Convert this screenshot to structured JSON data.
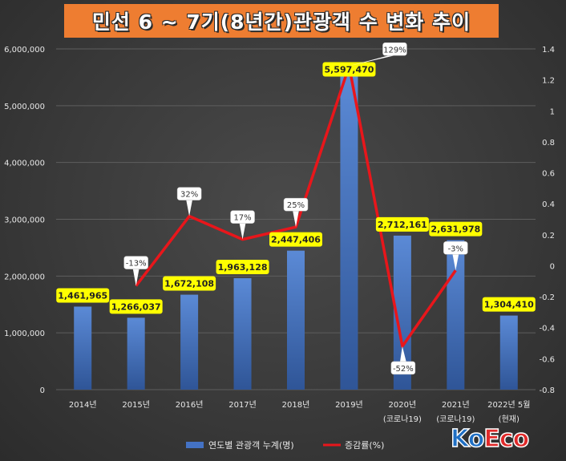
{
  "title": "민선 6 ~ 7기(8년간)관광객 수 변화 추이",
  "logo": {
    "part1": "Ko",
    "part2": "Eco"
  },
  "colors": {
    "bar": "#4472c4",
    "line": "#e8161b",
    "title_bg": "#ee7d31",
    "label_bg": "#ffff00"
  },
  "chart_data": {
    "type": "bar",
    "categories": [
      [
        "2014년"
      ],
      [
        "2015년"
      ],
      [
        "2016년"
      ],
      [
        "2017년"
      ],
      [
        "2018년"
      ],
      [
        "2019년"
      ],
      [
        "2020년",
        "(코로나19)"
      ],
      [
        "2021년",
        "(코로나19)"
      ],
      [
        "2022년 5월",
        "(현재)"
      ]
    ],
    "series": [
      {
        "name": "연도별 관광객 누계(명)",
        "type": "bar",
        "axis": "left",
        "values": [
          1461965,
          1266037,
          1672108,
          1963128,
          2447406,
          5597470,
          2712161,
          2631978,
          1304410
        ],
        "labels": [
          "1,461,965",
          "1,266,037",
          "1,672,108",
          "1,963,128",
          "2,447,406",
          "5,597,470",
          "2,712,161",
          "2,631,978",
          "1,304,410"
        ]
      },
      {
        "name": "증감률(%)",
        "type": "line",
        "axis": "right",
        "values": [
          null,
          -0.13,
          0.32,
          0.17,
          0.25,
          1.29,
          -0.52,
          -0.03,
          null
        ],
        "labels": [
          null,
          "-13%",
          "32%",
          "17%",
          "25%",
          "129%",
          "-52%",
          "-3%",
          null
        ]
      }
    ],
    "y_left": {
      "min": 0,
      "max": 6000000,
      "step": 1000000,
      "ticks": [
        "0",
        "1,000,000",
        "2,000,000",
        "3,000,000",
        "4,000,000",
        "5,000,000",
        "6,000,000"
      ]
    },
    "y_right": {
      "min": -0.8,
      "max": 1.4,
      "step": 0.2,
      "ticks": [
        "-0.8",
        "-0.6",
        "-0.4",
        "-0.2",
        "0",
        "0.2",
        "0.4",
        "0.6",
        "0.8",
        "1",
        "1.2",
        "1.4"
      ]
    },
    "grid": true,
    "legend": "bottom"
  }
}
